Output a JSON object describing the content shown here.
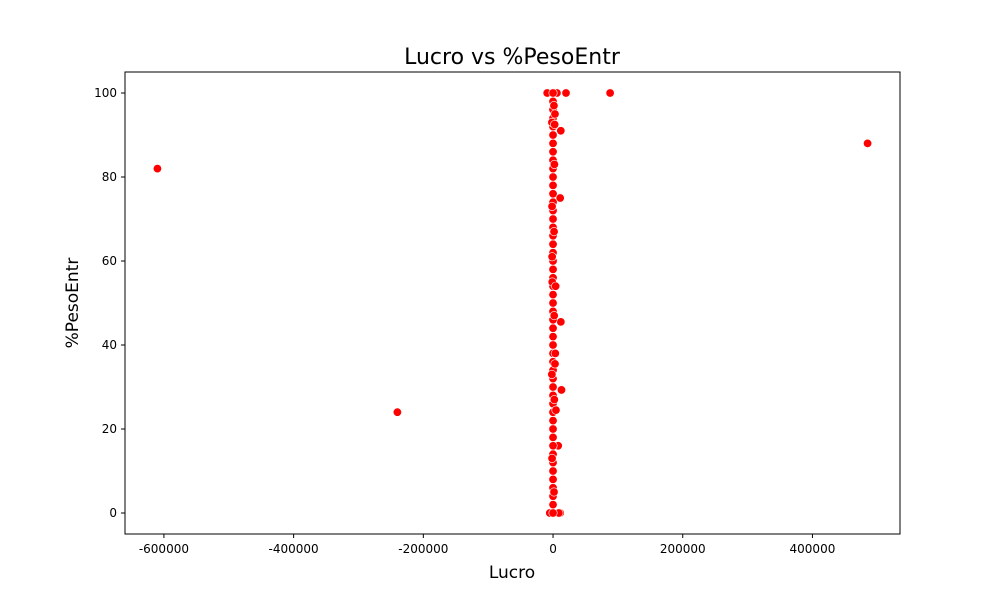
{
  "chart_data": {
    "type": "scatter",
    "title": "Lucro vs %PesoEntr",
    "xlabel": "Lucro",
    "ylabel": "%PesoEntr",
    "xlim": [
      -660000,
      535000
    ],
    "ylim": [
      -5,
      105
    ],
    "xticks": [
      -600000,
      -400000,
      -200000,
      0,
      200000,
      400000
    ],
    "yticks": [
      0,
      20,
      40,
      60,
      80,
      100
    ],
    "grid": false,
    "marker_color": "#ff0000",
    "marker_edge_color": "#ffffff",
    "series": [
      {
        "points": [
          [
            -610000,
            82
          ],
          [
            -240000,
            24
          ],
          [
            485000,
            88
          ],
          [
            88000,
            100
          ],
          [
            20000,
            100
          ],
          [
            -9000,
            100
          ],
          [
            6000,
            100
          ],
          [
            12000,
            91
          ],
          [
            11000,
            75
          ],
          [
            12000,
            45.5
          ],
          [
            13000,
            29.3
          ],
          [
            8000,
            16
          ],
          [
            11000,
            0
          ],
          [
            -5000,
            0
          ],
          [
            9000,
            0
          ],
          [
            0,
            0
          ],
          [
            0,
            2
          ],
          [
            0,
            4
          ],
          [
            0,
            6
          ],
          [
            0,
            8
          ],
          [
            0,
            10
          ],
          [
            0,
            12
          ],
          [
            0,
            14
          ],
          [
            0,
            16
          ],
          [
            0,
            18
          ],
          [
            0,
            20
          ],
          [
            0,
            22
          ],
          [
            0,
            24
          ],
          [
            0,
            26
          ],
          [
            0,
            28
          ],
          [
            0,
            30
          ],
          [
            0,
            32
          ],
          [
            0,
            34
          ],
          [
            0,
            36
          ],
          [
            0,
            38
          ],
          [
            0,
            40
          ],
          [
            0,
            42
          ],
          [
            0,
            44
          ],
          [
            0,
            46
          ],
          [
            0,
            48
          ],
          [
            0,
            50
          ],
          [
            0,
            52
          ],
          [
            0,
            54
          ],
          [
            0,
            56
          ],
          [
            0,
            58
          ],
          [
            0,
            60
          ],
          [
            0,
            62
          ],
          [
            0,
            64
          ],
          [
            0,
            66
          ],
          [
            0,
            68
          ],
          [
            0,
            70
          ],
          [
            0,
            72
          ],
          [
            0,
            74
          ],
          [
            0,
            76
          ],
          [
            0,
            78
          ],
          [
            0,
            80
          ],
          [
            0,
            82
          ],
          [
            0,
            84
          ],
          [
            0,
            86
          ],
          [
            0,
            88
          ],
          [
            0,
            90
          ],
          [
            0,
            92
          ],
          [
            0,
            94
          ],
          [
            0,
            96
          ],
          [
            0,
            98
          ],
          [
            0,
            100
          ],
          [
            1500,
            5
          ],
          [
            -1500,
            13
          ],
          [
            2000,
            27
          ],
          [
            -1800,
            33
          ],
          [
            1800,
            47
          ],
          [
            -1200,
            55
          ],
          [
            1600,
            67
          ],
          [
            -1500,
            73
          ],
          [
            2100,
            83
          ],
          [
            -1700,
            93
          ],
          [
            1400,
            97
          ],
          [
            -1400,
            61
          ],
          [
            3000,
            35.5
          ],
          [
            4000,
            54
          ],
          [
            3500,
            38
          ],
          [
            2500,
            92.5
          ],
          [
            3000,
            95
          ],
          [
            4500,
            24.5
          ]
        ]
      }
    ]
  }
}
